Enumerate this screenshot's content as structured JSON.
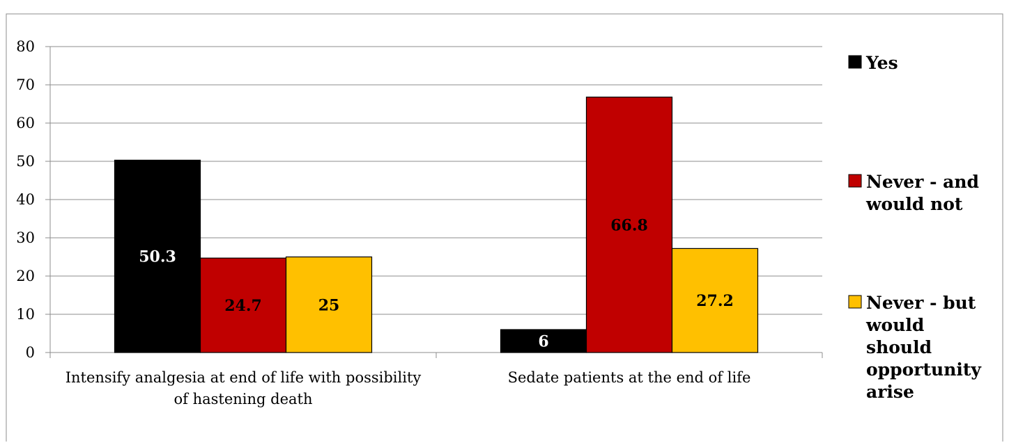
{
  "chart_data": {
    "type": "bar",
    "title": "",
    "xlabel": "",
    "ylabel": "",
    "categories": [
      [
        "Intensify analgesia at end of life with possibility",
        "of hastening death"
      ],
      [
        "Sedate patients at the end of life"
      ]
    ],
    "series": [
      {
        "name": "Yes",
        "values": [
          50.3,
          6
        ],
        "color": "#000000",
        "label_color": "#ffffff"
      },
      {
        "name": "Never - and would not",
        "legend_lines": [
          "Never - and",
          "would not"
        ],
        "values": [
          24.7,
          66.8
        ],
        "color": "#c00000",
        "label_color": "#000000"
      },
      {
        "name": "Never - but would should opportunity arise",
        "legend_lines": [
          "Never - but",
          "would",
          "should",
          "opportunity",
          "arise"
        ],
        "values": [
          25,
          27.2
        ],
        "color": "#ffc000",
        "label_color": "#000000"
      }
    ],
    "data_labels": [
      [
        "50.3",
        "6"
      ],
      [
        "24.7",
        "66.8"
      ],
      [
        "25",
        "27.2"
      ]
    ],
    "ylim": [
      0,
      80
    ],
    "yticks": [
      "0",
      "10",
      "20",
      "30",
      "40",
      "50",
      "60",
      "70",
      "80"
    ],
    "grid": true,
    "legend_position": "right"
  }
}
